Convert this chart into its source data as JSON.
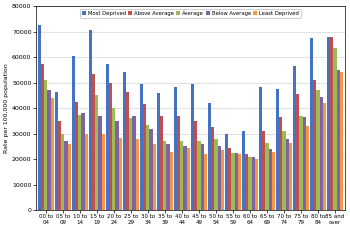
{
  "categories": [
    "00 to\n04",
    "05 to\n09",
    "10 to\n14",
    "15 to\n19",
    "20 to\n24",
    "25 to\n29",
    "30 to\n34",
    "35 to\n39",
    "40 to\n44",
    "45 to\n49",
    "50 to\n54",
    "55 to\n59",
    "60 to\n64",
    "65 to\n69",
    "70 to\n74",
    "75 to\n79",
    "80 to\n84",
    "85 and\nover"
  ],
  "series": {
    "Most Deprived": [
      72500,
      46500,
      60500,
      70500,
      57500,
      54000,
      49500,
      46000,
      48500,
      49500,
      42000,
      30000,
      31000,
      48500,
      47500,
      56500,
      67500,
      68000
    ],
    "Above Average": [
      57500,
      35000,
      42500,
      53500,
      50000,
      46500,
      41500,
      37000,
      37000,
      35000,
      32500,
      24500,
      22000,
      31000,
      36500,
      45500,
      51000,
      68000
    ],
    "Average": [
      51000,
      30000,
      37500,
      45000,
      40000,
      36000,
      33500,
      27000,
      27000,
      27000,
      28000,
      22500,
      21000,
      26500,
      31000,
      37000,
      47000,
      63500
    ],
    "Below Average": [
      47000,
      27000,
      38000,
      37000,
      35000,
      37000,
      32000,
      26000,
      25000,
      26000,
      25000,
      22500,
      21000,
      24000,
      28000,
      36500,
      44500,
      55000
    ],
    "Least Deprived": [
      44000,
      26000,
      30000,
      30000,
      28500,
      28000,
      26000,
      23000,
      24500,
      22000,
      23500,
      22000,
      20000,
      23000,
      26500,
      33000,
      42000,
      54000
    ]
  },
  "colors": {
    "Most Deprived": "#4472C4",
    "Above Average": "#C0504D",
    "Average": "#9BBB59",
    "Below Average": "#8064A2",
    "Least Deprived": "#F79646"
  },
  "ylabel": "Rate per 100,000 population",
  "ylim": [
    0,
    80000
  ],
  "yticks": [
    0,
    10000,
    20000,
    30000,
    40000,
    50000,
    60000,
    70000,
    80000
  ],
  "ytick_labels": [
    "0",
    "10000",
    "20000",
    "30000",
    "40000",
    "50000",
    "60000",
    "70000",
    "80000"
  ],
  "legend_order": [
    "Most Deprived",
    "Above Average",
    "Average",
    "Below Average",
    "Least Deprived"
  ]
}
